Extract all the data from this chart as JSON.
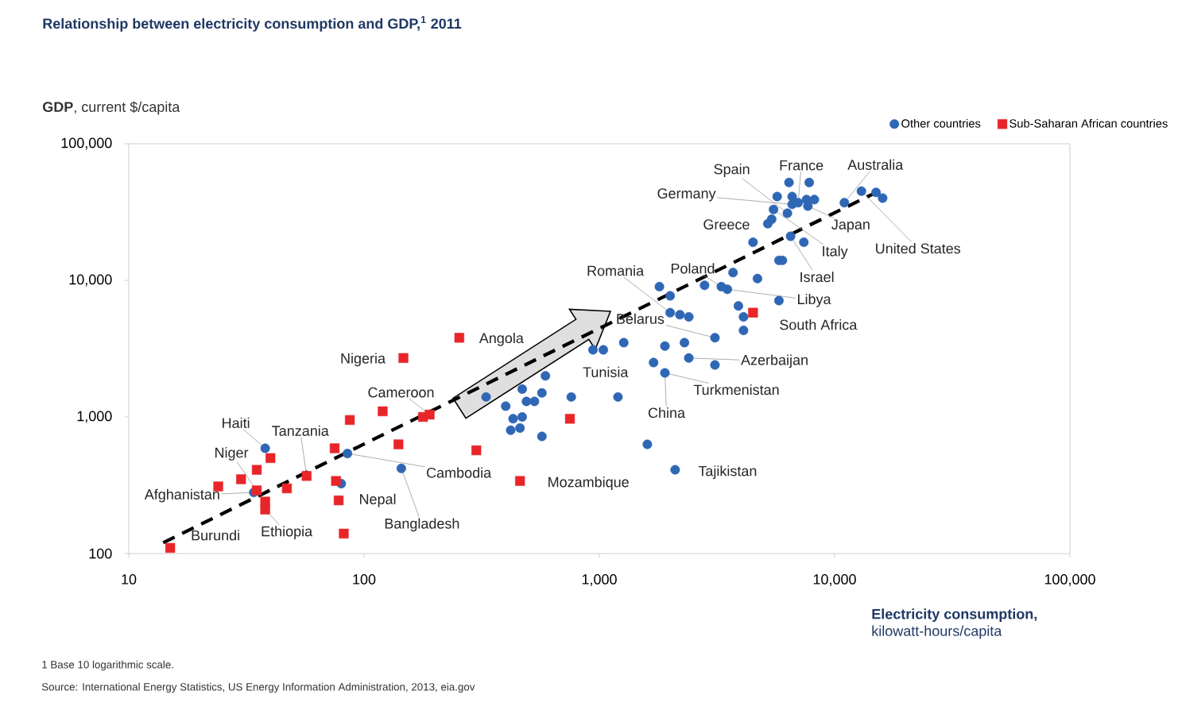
{
  "chart_data": {
    "type": "scatter",
    "title": "Relationship between electricity consumption and GDP,$^{1}$ 2011",
    "ylabel": "**GDP**, current $/capita",
    "xlabel": "**Electricity consumption,** kilowatt-hours/capita",
    "log": "xy",
    "xlim": [
      10,
      100000
    ],
    "ylim": [
      100,
      100000
    ],
    "xticks": [
      10,
      100,
      {
        "value": 1000,
        "label": "1,000"
      },
      {
        "value": 10000,
        "label": "10,000"
      },
      {
        "value": 100000,
        "label": "100,000"
      }
    ],
    "yticks": [
      100,
      {
        "value": 1000,
        "label": "1,000"
      },
      {
        "value": 10000,
        "label": "10,000"
      },
      {
        "value": 100000,
        "label": "100,000"
      }
    ],
    "legend": "top right",
    "series": [
      {
        "name": "Other countries",
        "marker": "circle",
        "color": "#2f67b5",
        "x": [
          38,
          34,
          80,
          85,
          144,
          330,
          400,
          420,
          430,
          460,
          470,
          470,
          490,
          530,
          570,
          570,
          590,
          760,
          940,
          1040,
          1200,
          1270,
          1600,
          1700,
          1800,
          1900,
          1900,
          2000,
          2000,
          2100,
          2200,
          2300,
          2400,
          2400,
          2800,
          3100,
          3100,
          3300,
          3500,
          3700,
          3900,
          4100,
          4100,
          4500,
          4700,
          5200,
          5400,
          5500,
          5700,
          5800,
          5800,
          6000,
          6300,
          6400,
          6500,
          6600,
          6600,
          7000,
          7400,
          7600,
          7700,
          7800,
          8200,
          11000,
          13000,
          15000,
          16000
        ],
        "values": [
          590,
          280,
          325,
          540,
          420,
          1400,
          1200,
          800,
          970,
          830,
          1000,
          1600,
          1300,
          1300,
          1500,
          720,
          2000,
          1400,
          3100,
          3100,
          1400,
          3500,
          630,
          2500,
          9000,
          3300,
          2100,
          7700,
          5800,
          410,
          5600,
          3500,
          5400,
          2700,
          9200,
          3800,
          2400,
          9000,
          8600,
          11400,
          6500,
          5400,
          4300,
          19000,
          10300,
          26000,
          28000,
          33000,
          41000,
          7100,
          14000,
          14000,
          31000,
          52000,
          21000,
          41000,
          36000,
          37000,
          19000,
          39000,
          35000,
          52000,
          39000,
          37000,
          45000,
          44000,
          40000
        ]
      },
      {
        "name": "Sub-Saharan African countries",
        "marker": "square",
        "color": "#e8262a",
        "x": [
          15,
          24,
          30,
          35,
          40,
          35,
          38,
          38,
          47,
          57,
          75,
          76,
          78,
          82,
          87,
          120,
          140,
          147,
          178,
          190,
          254,
          300,
          460,
          750,
          4500
        ],
        "values": [
          110,
          310,
          350,
          410,
          500,
          290,
          240,
          210,
          300,
          370,
          590,
          340,
          245,
          140,
          950,
          1100,
          630,
          2700,
          1000,
          1040,
          3800,
          570,
          340,
          970,
          5800
        ]
      },
      {
        "type": "line",
        "marker": "none",
        "line_style": "dashed",
        "color": "#000000",
        "x": [
          14,
          15000
        ],
        "values": [
          120,
          44000
        ]
      }
    ],
    "annotations": [
      "1 Base 10 logarithmic scale.",
      "Source: International Energy Statistics, US Energy Information Administration, 2013, eia.gov",
      {
        "text": "Haiti",
        "x": 38,
        "y": 590
      },
      {
        "text": "Niger",
        "x": 35,
        "y": 290
      },
      {
        "text": "Tanzania",
        "x": 57,
        "y": 370
      },
      {
        "text": "Afghanistan",
        "x": 34,
        "y": 280
      },
      {
        "text": "Burundi",
        "x": 15,
        "y": 110
      },
      {
        "text": "Ethiopia",
        "x": 38,
        "y": 210
      },
      {
        "text": "Nepal",
        "x": 78,
        "y": 245
      },
      {
        "text": "Bangladesh",
        "x": 144,
        "y": 420
      },
      {
        "text": "Cambodia",
        "x": 85,
        "y": 540
      },
      {
        "text": "Cameroon",
        "x": 190,
        "y": 1040
      },
      {
        "text": "Nigeria",
        "x": 147,
        "y": 2700
      },
      {
        "text": "Angola",
        "x": 254,
        "y": 3800
      },
      {
        "text": "Mozambique",
        "x": 460,
        "y": 340
      },
      {
        "text": "Tunisia",
        "x": 1270,
        "y": 3500
      },
      {
        "text": "China",
        "x": 1900,
        "y": 2100
      },
      {
        "text": "Turkmenistan",
        "x": 1900,
        "y": 2100
      },
      {
        "text": "Azerbaijan",
        "x": 2400,
        "y": 2700
      },
      {
        "text": "Tajikistan",
        "x": 2100,
        "y": 410
      },
      {
        "text": "South Africa",
        "x": 4500,
        "y": 5800
      },
      {
        "text": "Libya",
        "x": 3500,
        "y": 8600
      },
      {
        "text": "Romania",
        "x": 2000,
        "y": 5800
      },
      {
        "text": "Poland",
        "x": 3300,
        "y": 9000
      },
      {
        "text": "Belarus",
        "x": 3100,
        "y": 3800
      },
      {
        "text": "Israel",
        "x": 6500,
        "y": 21000
      },
      {
        "text": "Italy",
        "x": 5500,
        "y": 33000
      },
      {
        "text": "United States",
        "x": 13000,
        "y": 45000
      },
      {
        "text": "Japan",
        "x": 7700,
        "y": 35000
      },
      {
        "text": "Greece",
        "x": 5200,
        "y": 26000
      },
      {
        "text": "Germany",
        "x": 6600,
        "y": 36000
      },
      {
        "text": "Spain",
        "x": 6300,
        "y": 31000
      },
      {
        "text": "France",
        "x": 7000,
        "y": 37000
      },
      {
        "text": "Australia",
        "x": 11000,
        "y": 37000
      }
    ]
  }
}
